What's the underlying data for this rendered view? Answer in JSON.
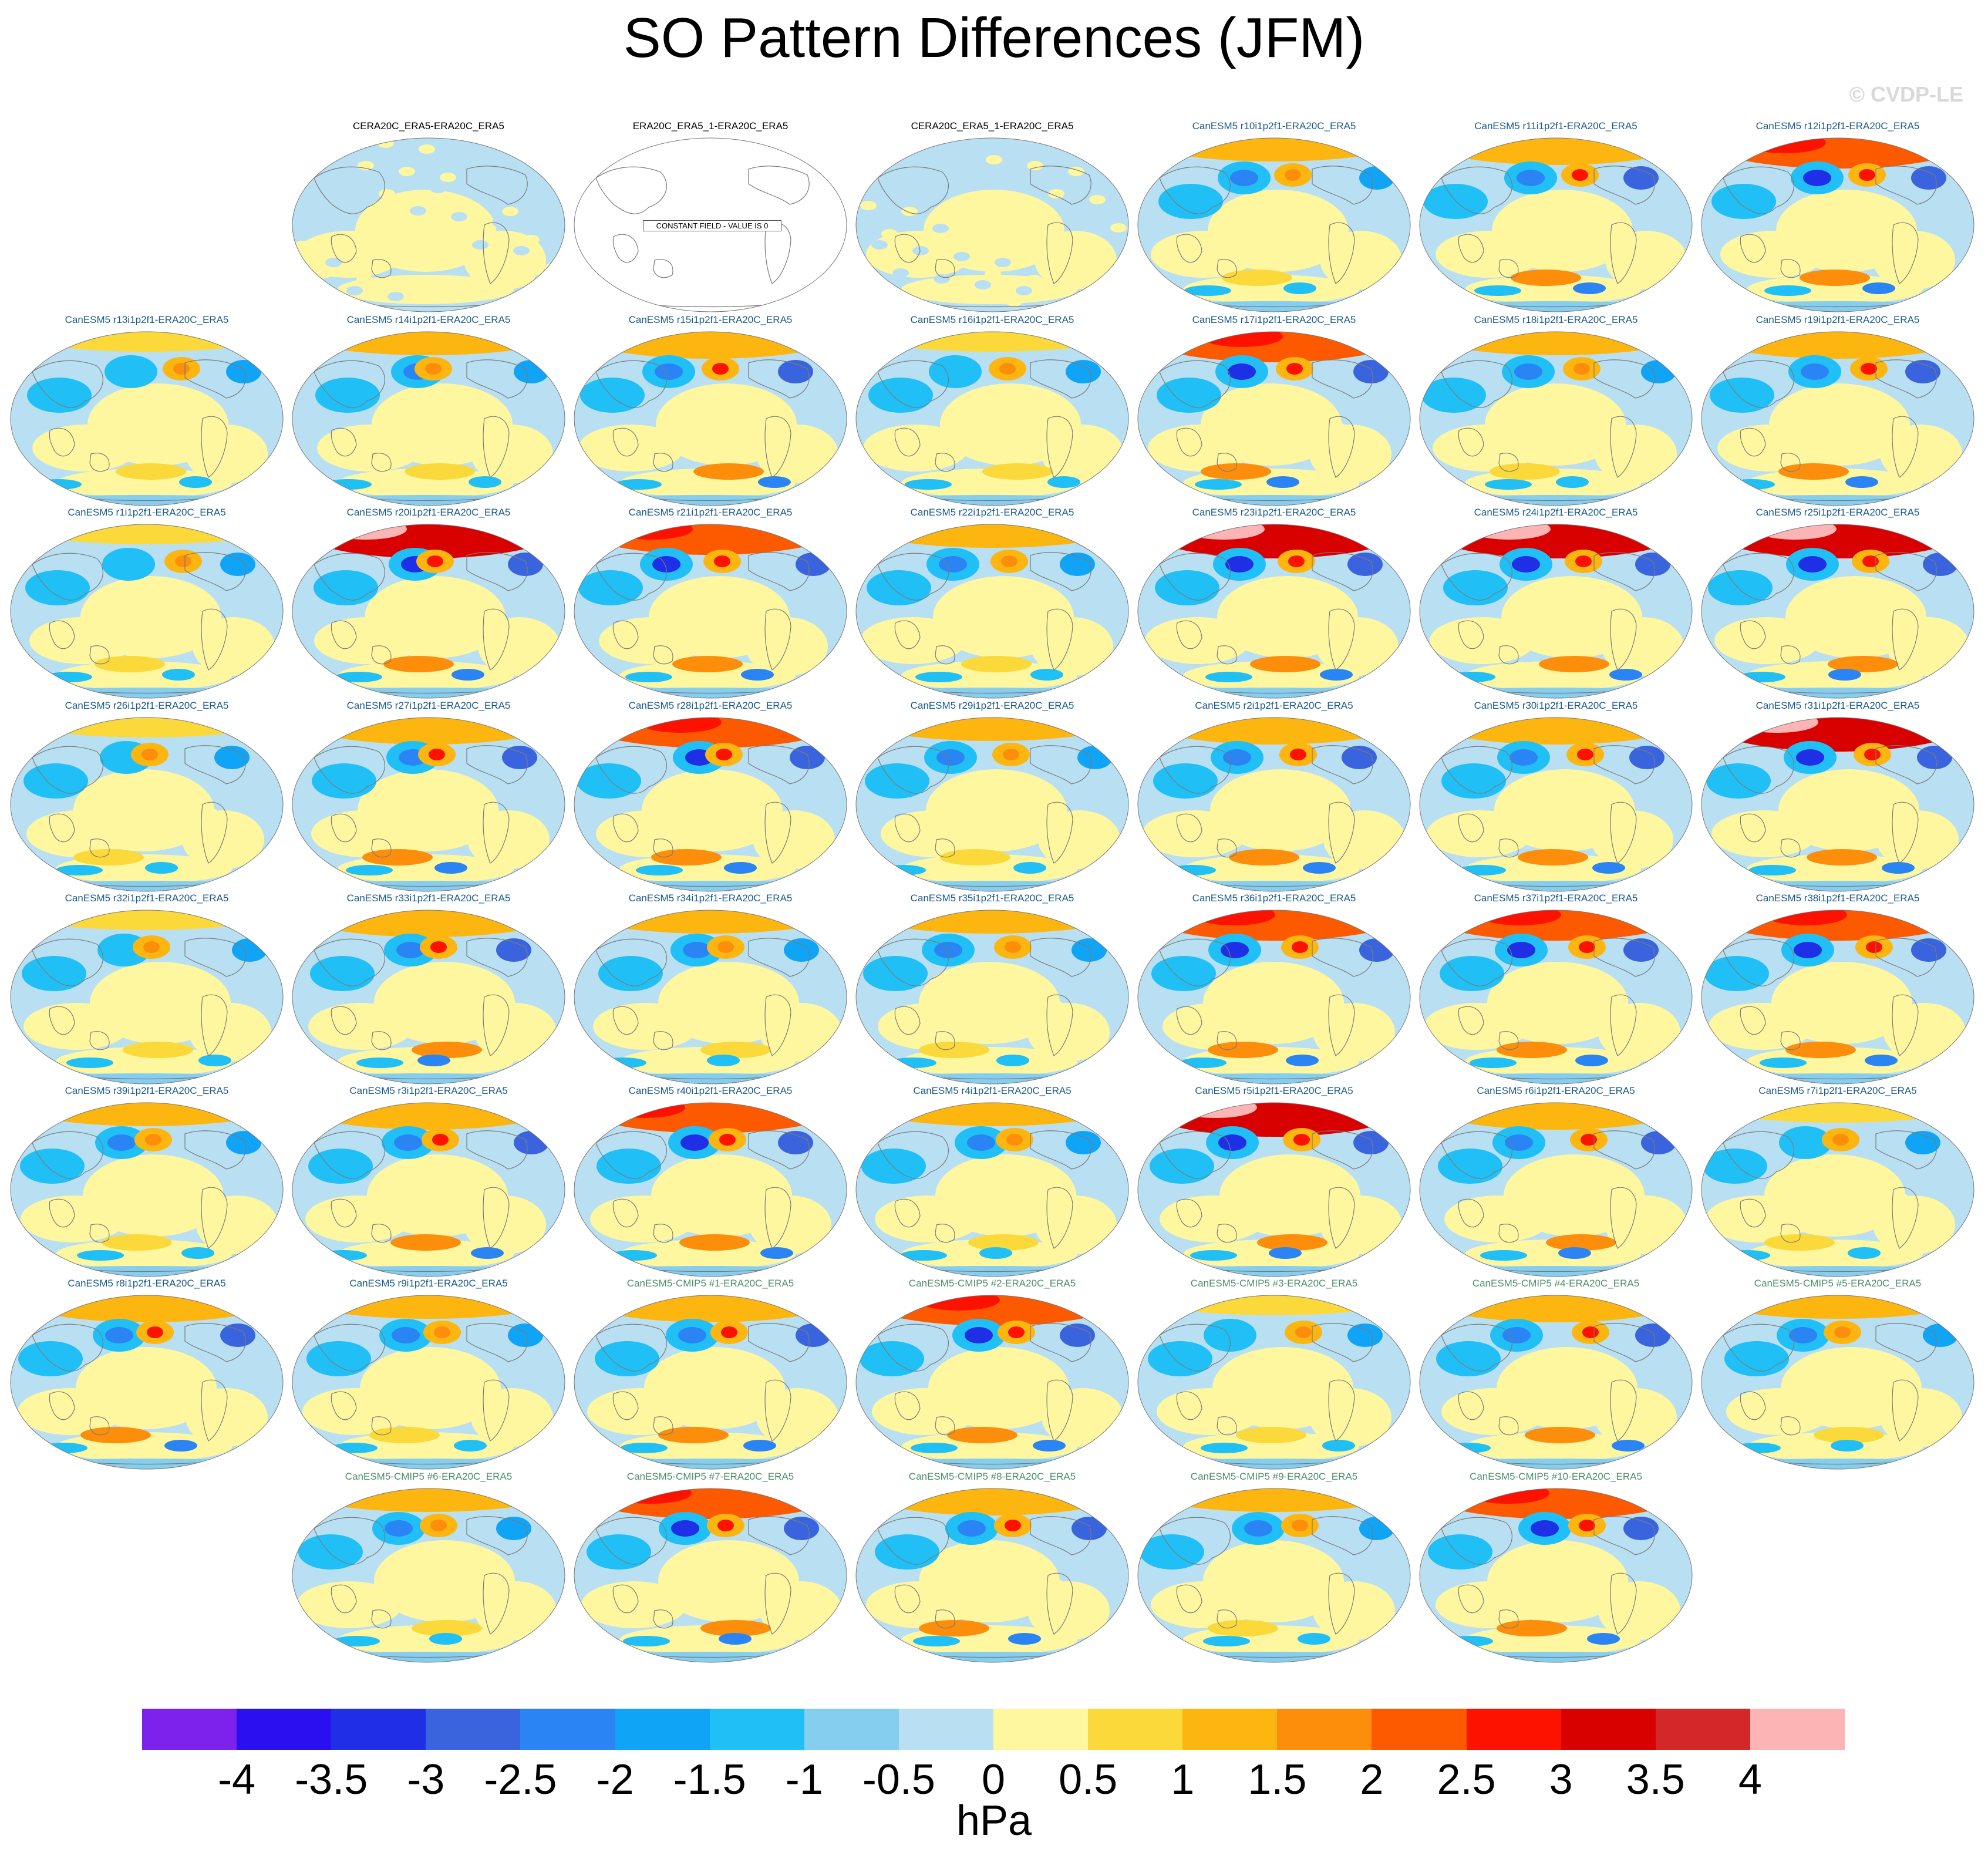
{
  "title": "SO Pattern Differences (JFM)",
  "watermark": "© CVDP-LE",
  "units": "hPa",
  "constant_note": "CONSTANT FIELD - VALUE IS 0",
  "colors": {
    "title_obs": "#000000",
    "title_model": "#1a5a8a",
    "title_cmip5": "#4f8f6a",
    "ocean_light": "#b9dff2",
    "land_outline": "#7a7a7a"
  },
  "colorbar": {
    "ticks": [
      "-4",
      "-3.5",
      "-3",
      "-2.5",
      "-2",
      "-1.5",
      "-1",
      "-0.5",
      "0",
      "0.5",
      "1",
      "1.5",
      "2",
      "2.5",
      "3",
      "3.5",
      "4"
    ],
    "colors": [
      "#7c22ea",
      "#2a0ff0",
      "#1f2fe6",
      "#3a64de",
      "#2a84f4",
      "#10a4f6",
      "#20c0f6",
      "#86cef0",
      "#b9e0f2",
      "#fef7a0",
      "#fcd93a",
      "#fdb610",
      "#fd8e0c",
      "#fd5a00",
      "#fd1200",
      "#d90000",
      "#d2282a",
      "#fcb4b4"
    ]
  },
  "panels": [
    {
      "title": "CERA20C_ERA5-ERA20C_ERA5",
      "group": "obs",
      "row": 0,
      "col": 1,
      "v": 0
    },
    {
      "title": "ERA20C_ERA5_1-ERA20C_ERA5",
      "group": "obs",
      "row": 0,
      "col": 2,
      "v": "const"
    },
    {
      "title": "CERA20C_ERA5_1-ERA20C_ERA5",
      "group": "obs",
      "row": 0,
      "col": 3,
      "v": 0
    },
    {
      "title": "CanESM5 r10i1p2f1-ERA20C_ERA5",
      "group": "model",
      "row": 0,
      "col": 4,
      "v": 2
    },
    {
      "title": "CanESM5 r11i1p2f1-ERA20C_ERA5",
      "group": "model",
      "row": 0,
      "col": 5,
      "v": 3
    },
    {
      "title": "CanESM5 r12i1p2f1-ERA20C_ERA5",
      "group": "model",
      "row": 0,
      "col": 6,
      "v": 4
    },
    {
      "title": "CanESM5 r13i1p2f1-ERA20C_ERA5",
      "group": "model",
      "row": 1,
      "col": 0,
      "v": 1
    },
    {
      "title": "CanESM5 r14i1p2f1-ERA20C_ERA5",
      "group": "model",
      "row": 1,
      "col": 1,
      "v": 2
    },
    {
      "title": "CanESM5 r15i1p2f1-ERA20C_ERA5",
      "group": "model",
      "row": 1,
      "col": 2,
      "v": 3
    },
    {
      "title": "CanESM5 r16i1p2f1-ERA20C_ERA5",
      "group": "model",
      "row": 1,
      "col": 3,
      "v": 1
    },
    {
      "title": "CanESM5 r17i1p2f1-ERA20C_ERA5",
      "group": "model",
      "row": 1,
      "col": 4,
      "v": 4
    },
    {
      "title": "CanESM5 r18i1p2f1-ERA20C_ERA5",
      "group": "model",
      "row": 1,
      "col": 5,
      "v": 2
    },
    {
      "title": "CanESM5 r19i1p2f1-ERA20C_ERA5",
      "group": "model",
      "row": 1,
      "col": 6,
      "v": 3
    },
    {
      "title": "CanESM5 r1i1p2f1-ERA20C_ERA5",
      "group": "model",
      "row": 2,
      "col": 0,
      "v": 1
    },
    {
      "title": "CanESM5 r20i1p2f1-ERA20C_ERA5",
      "group": "model",
      "row": 2,
      "col": 1,
      "v": 5
    },
    {
      "title": "CanESM5 r21i1p2f1-ERA20C_ERA5",
      "group": "model",
      "row": 2,
      "col": 2,
      "v": 4
    },
    {
      "title": "CanESM5 r22i1p2f1-ERA20C_ERA5",
      "group": "model",
      "row": 2,
      "col": 3,
      "v": 2
    },
    {
      "title": "CanESM5 r23i1p2f1-ERA20C_ERA5",
      "group": "model",
      "row": 2,
      "col": 4,
      "v": 5
    },
    {
      "title": "CanESM5 r24i1p2f1-ERA20C_ERA5",
      "group": "model",
      "row": 2,
      "col": 5,
      "v": 5
    },
    {
      "title": "CanESM5 r25i1p2f1-ERA20C_ERA5",
      "group": "model",
      "row": 2,
      "col": 6,
      "v": 5
    },
    {
      "title": "CanESM5 r26i1p2f1-ERA20C_ERA5",
      "group": "model",
      "row": 3,
      "col": 0,
      "v": 1
    },
    {
      "title": "CanESM5 r27i1p2f1-ERA20C_ERA5",
      "group": "model",
      "row": 3,
      "col": 1,
      "v": 3
    },
    {
      "title": "CanESM5 r28i1p2f1-ERA20C_ERA5",
      "group": "model",
      "row": 3,
      "col": 2,
      "v": 4
    },
    {
      "title": "CanESM5 r29i1p2f1-ERA20C_ERA5",
      "group": "model",
      "row": 3,
      "col": 3,
      "v": 2
    },
    {
      "title": "CanESM5 r2i1p2f1-ERA20C_ERA5",
      "group": "model",
      "row": 3,
      "col": 4,
      "v": 3
    },
    {
      "title": "CanESM5 r30i1p2f1-ERA20C_ERA5",
      "group": "model",
      "row": 3,
      "col": 5,
      "v": 3
    },
    {
      "title": "CanESM5 r31i1p2f1-ERA20C_ERA5",
      "group": "model",
      "row": 3,
      "col": 6,
      "v": 5
    },
    {
      "title": "CanESM5 r32i1p2f1-ERA20C_ERA5",
      "group": "model",
      "row": 4,
      "col": 0,
      "v": 1
    },
    {
      "title": "CanESM5 r33i1p2f1-ERA20C_ERA5",
      "group": "model",
      "row": 4,
      "col": 1,
      "v": 3
    },
    {
      "title": "CanESM5 r34i1p2f1-ERA20C_ERA5",
      "group": "model",
      "row": 4,
      "col": 2,
      "v": 2
    },
    {
      "title": "CanESM5 r35i1p2f1-ERA20C_ERA5",
      "group": "model",
      "row": 4,
      "col": 3,
      "v": 2
    },
    {
      "title": "CanESM5 r36i1p2f1-ERA20C_ERA5",
      "group": "model",
      "row": 4,
      "col": 4,
      "v": 4
    },
    {
      "title": "CanESM5 r37i1p2f1-ERA20C_ERA5",
      "group": "model",
      "row": 4,
      "col": 5,
      "v": 4
    },
    {
      "title": "CanESM5 r38i1p2f1-ERA20C_ERA5",
      "group": "model",
      "row": 4,
      "col": 6,
      "v": 4
    },
    {
      "title": "CanESM5 r39i1p2f1-ERA20C_ERA5",
      "group": "model",
      "row": 5,
      "col": 0,
      "v": 2
    },
    {
      "title": "CanESM5 r3i1p2f1-ERA20C_ERA5",
      "group": "model",
      "row": 5,
      "col": 1,
      "v": 3
    },
    {
      "title": "CanESM5 r40i1p2f1-ERA20C_ERA5",
      "group": "model",
      "row": 5,
      "col": 2,
      "v": 4
    },
    {
      "title": "CanESM5 r4i1p2f1-ERA20C_ERA5",
      "group": "model",
      "row": 5,
      "col": 3,
      "v": 2
    },
    {
      "title": "CanESM5 r5i1p2f1-ERA20C_ERA5",
      "group": "model",
      "row": 5,
      "col": 4,
      "v": 5
    },
    {
      "title": "CanESM5 r6i1p2f1-ERA20C_ERA5",
      "group": "model",
      "row": 5,
      "col": 5,
      "v": 3
    },
    {
      "title": "CanESM5 r7i1p2f1-ERA20C_ERA5",
      "group": "model",
      "row": 5,
      "col": 6,
      "v": 1
    },
    {
      "title": "CanESM5 r8i1p2f1-ERA20C_ERA5",
      "group": "model",
      "row": 6,
      "col": 0,
      "v": 3
    },
    {
      "title": "CanESM5 r9i1p2f1-ERA20C_ERA5",
      "group": "model",
      "row": 6,
      "col": 1,
      "v": 2
    },
    {
      "title": "CanESM5-CMIP5 #1-ERA20C_ERA5",
      "group": "cmip5",
      "row": 6,
      "col": 2,
      "v": 3
    },
    {
      "title": "CanESM5-CMIP5 #2-ERA20C_ERA5",
      "group": "cmip5",
      "row": 6,
      "col": 3,
      "v": 4
    },
    {
      "title": "CanESM5-CMIP5 #3-ERA20C_ERA5",
      "group": "cmip5",
      "row": 6,
      "col": 4,
      "v": 1
    },
    {
      "title": "CanESM5-CMIP5 #4-ERA20C_ERA5",
      "group": "cmip5",
      "row": 6,
      "col": 5,
      "v": 3
    },
    {
      "title": "CanESM5-CMIP5 #5-ERA20C_ERA5",
      "group": "cmip5",
      "row": 6,
      "col": 6,
      "v": 2
    },
    {
      "title": "CanESM5-CMIP5 #6-ERA20C_ERA5",
      "group": "cmip5",
      "row": 7,
      "col": 1,
      "v": 2
    },
    {
      "title": "CanESM5-CMIP5 #7-ERA20C_ERA5",
      "group": "cmip5",
      "row": 7,
      "col": 2,
      "v": 4
    },
    {
      "title": "CanESM5-CMIP5 #8-ERA20C_ERA5",
      "group": "cmip5",
      "row": 7,
      "col": 3,
      "v": 3
    },
    {
      "title": "CanESM5-CMIP5 #9-ERA20C_ERA5",
      "group": "cmip5",
      "row": 7,
      "col": 4,
      "v": 2
    },
    {
      "title": "CanESM5-CMIP5 #10-ERA20C_ERA5",
      "group": "cmip5",
      "row": 7,
      "col": 5,
      "v": 4
    }
  ]
}
